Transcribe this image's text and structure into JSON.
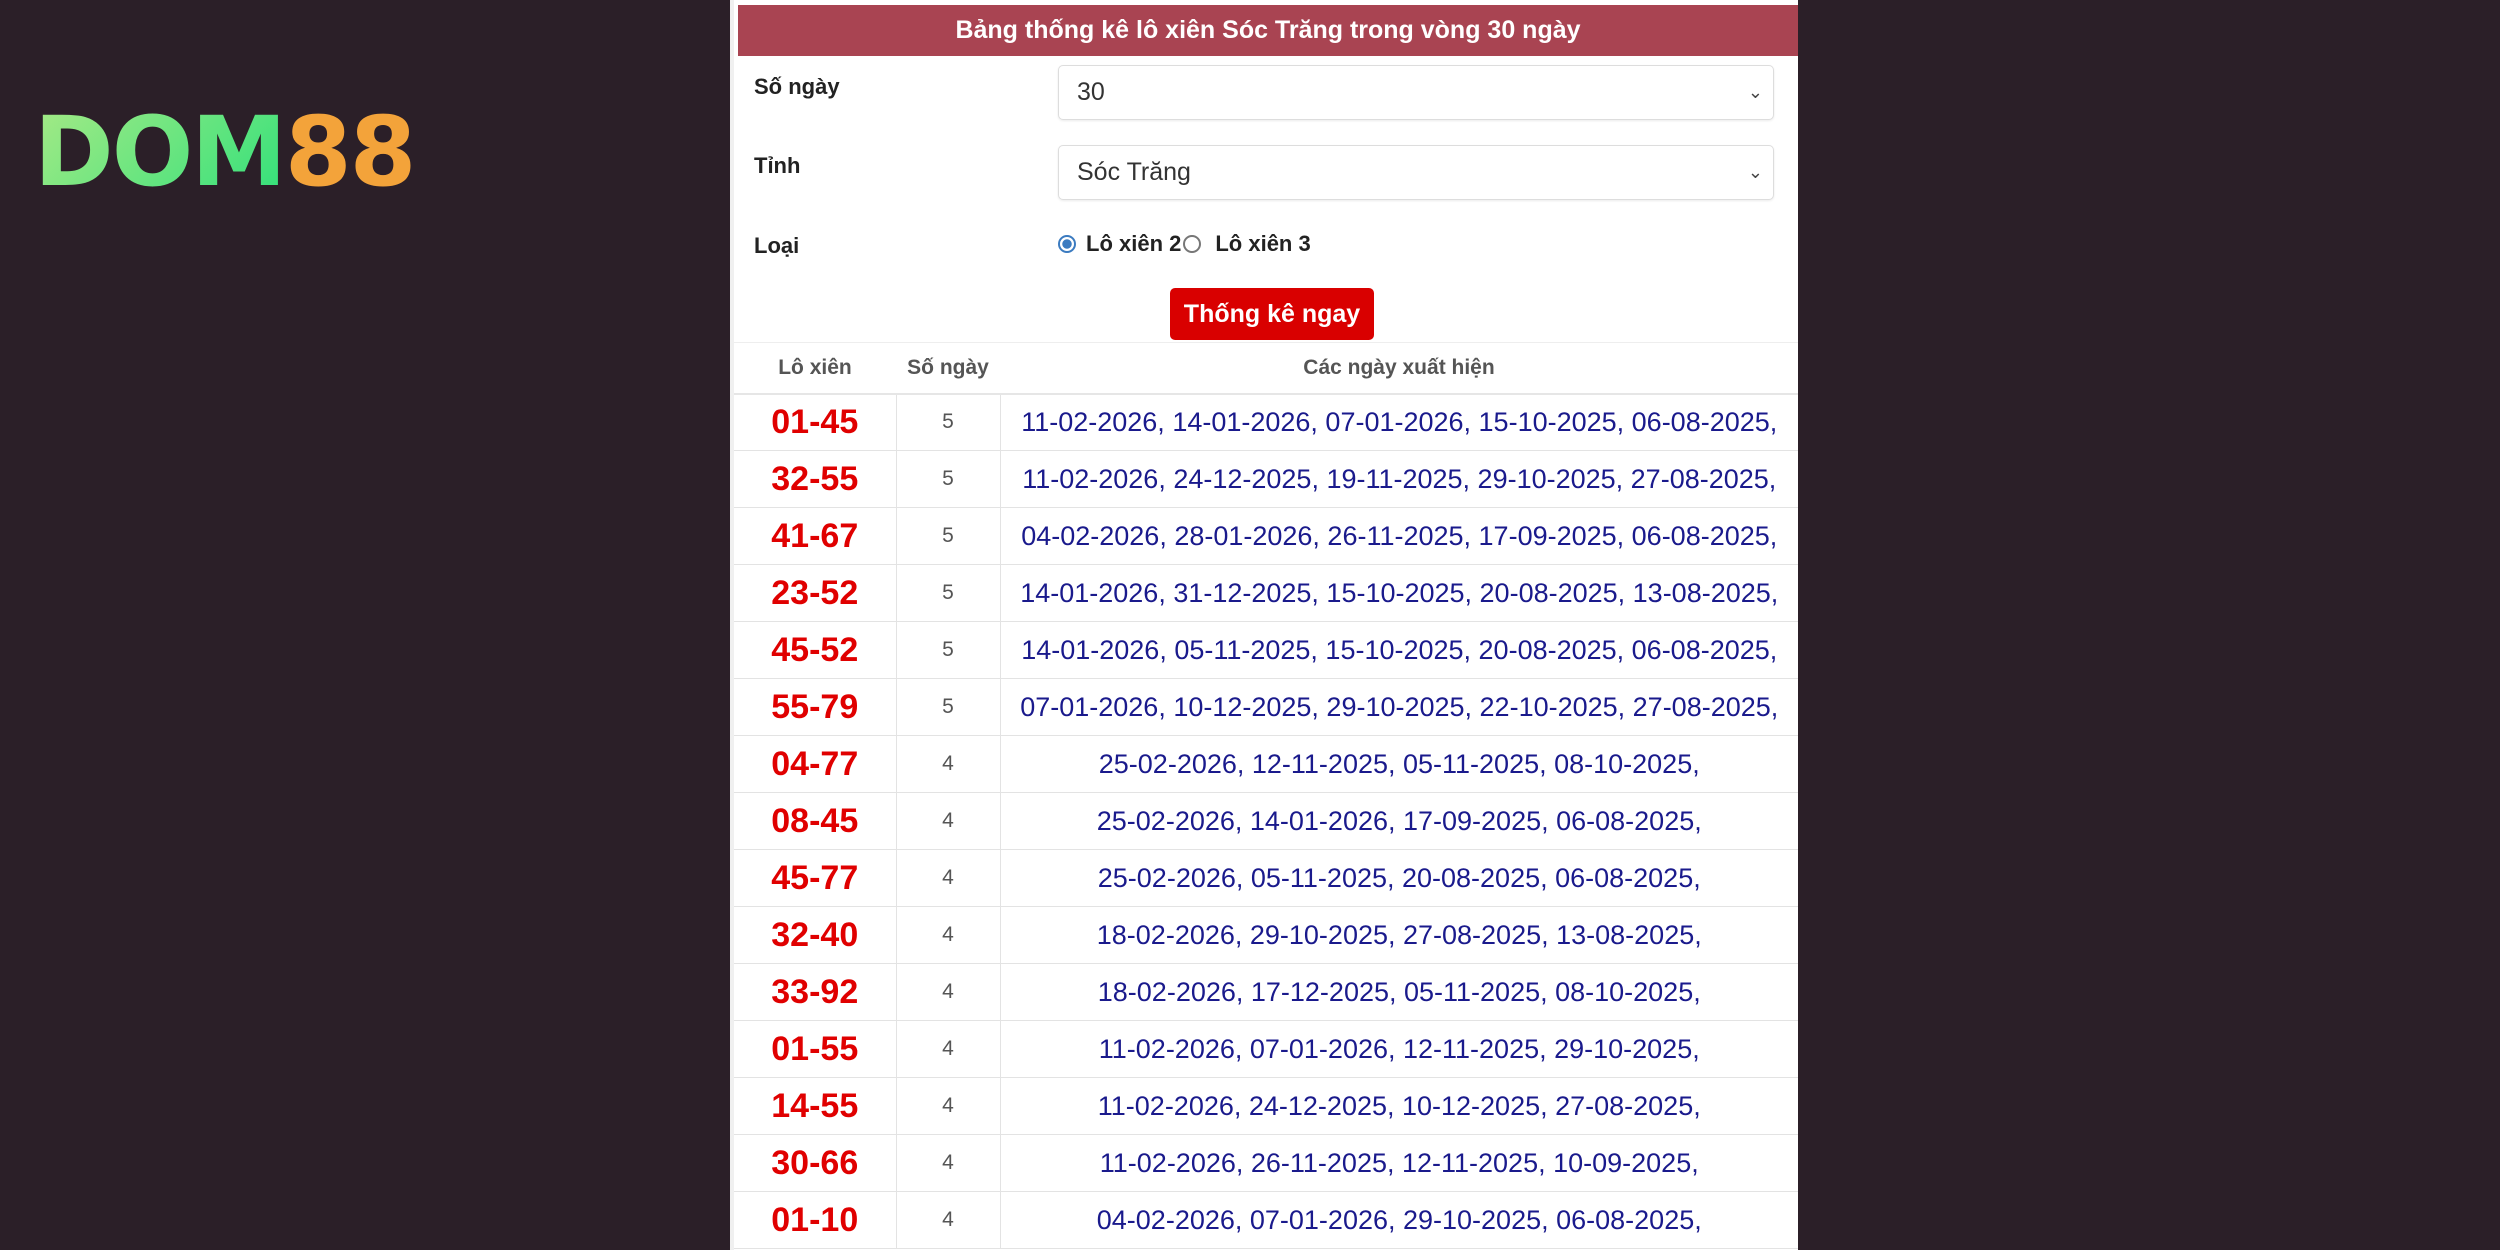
{
  "logo": {
    "text_a": "DOM",
    "text_b": "88"
  },
  "header": {
    "title": "Bảng thống kê lô xiên Sóc Trăng trong vòng 30 ngày"
  },
  "form": {
    "days_label": "Số ngày",
    "days_value": "30",
    "province_label": "Tỉnh",
    "province_value": "Sóc Trăng",
    "type_label": "Loại",
    "type_options": [
      "Lô xiên 2",
      "Lô xiên 3"
    ],
    "type_selected": "Lô xiên 2",
    "submit_label": "Thống kê ngay"
  },
  "table": {
    "headers": [
      "Lô xiên",
      "Số ngày",
      "Các ngày xuất hiện"
    ],
    "rows": [
      {
        "pair": "01-45",
        "count": "5",
        "dates": "11-02-2026, 14-01-2026, 07-01-2026, 15-10-2025, 06-08-2025,"
      },
      {
        "pair": "32-55",
        "count": "5",
        "dates": "11-02-2026, 24-12-2025, 19-11-2025, 29-10-2025, 27-08-2025,"
      },
      {
        "pair": "41-67",
        "count": "5",
        "dates": "04-02-2026, 28-01-2026, 26-11-2025, 17-09-2025, 06-08-2025,"
      },
      {
        "pair": "23-52",
        "count": "5",
        "dates": "14-01-2026, 31-12-2025, 15-10-2025, 20-08-2025, 13-08-2025,"
      },
      {
        "pair": "45-52",
        "count": "5",
        "dates": "14-01-2026, 05-11-2025, 15-10-2025, 20-08-2025, 06-08-2025,"
      },
      {
        "pair": "55-79",
        "count": "5",
        "dates": "07-01-2026, 10-12-2025, 29-10-2025, 22-10-2025, 27-08-2025,"
      },
      {
        "pair": "04-77",
        "count": "4",
        "dates": "25-02-2026, 12-11-2025, 05-11-2025, 08-10-2025,"
      },
      {
        "pair": "08-45",
        "count": "4",
        "dates": "25-02-2026, 14-01-2026, 17-09-2025, 06-08-2025,"
      },
      {
        "pair": "45-77",
        "count": "4",
        "dates": "25-02-2026, 05-11-2025, 20-08-2025, 06-08-2025,"
      },
      {
        "pair": "32-40",
        "count": "4",
        "dates": "18-02-2026, 29-10-2025, 27-08-2025, 13-08-2025,"
      },
      {
        "pair": "33-92",
        "count": "4",
        "dates": "18-02-2026, 17-12-2025, 05-11-2025, 08-10-2025,"
      },
      {
        "pair": "01-55",
        "count": "4",
        "dates": "11-02-2026, 07-01-2026, 12-11-2025, 29-10-2025,"
      },
      {
        "pair": "14-55",
        "count": "4",
        "dates": "11-02-2026, 24-12-2025, 10-12-2025, 27-08-2025,"
      },
      {
        "pair": "30-66",
        "count": "4",
        "dates": "11-02-2026, 26-11-2025, 12-11-2025, 10-09-2025,"
      },
      {
        "pair": "01-10",
        "count": "4",
        "dates": "04-02-2026, 07-01-2026, 29-10-2025, 06-08-2025,"
      }
    ]
  },
  "colors": {
    "header_bg": "#a94452",
    "button_bg": "#d90000",
    "pair_text": "#e00000",
    "dates_text": "#1a1a8c",
    "page_bg": "#2b1f28"
  }
}
